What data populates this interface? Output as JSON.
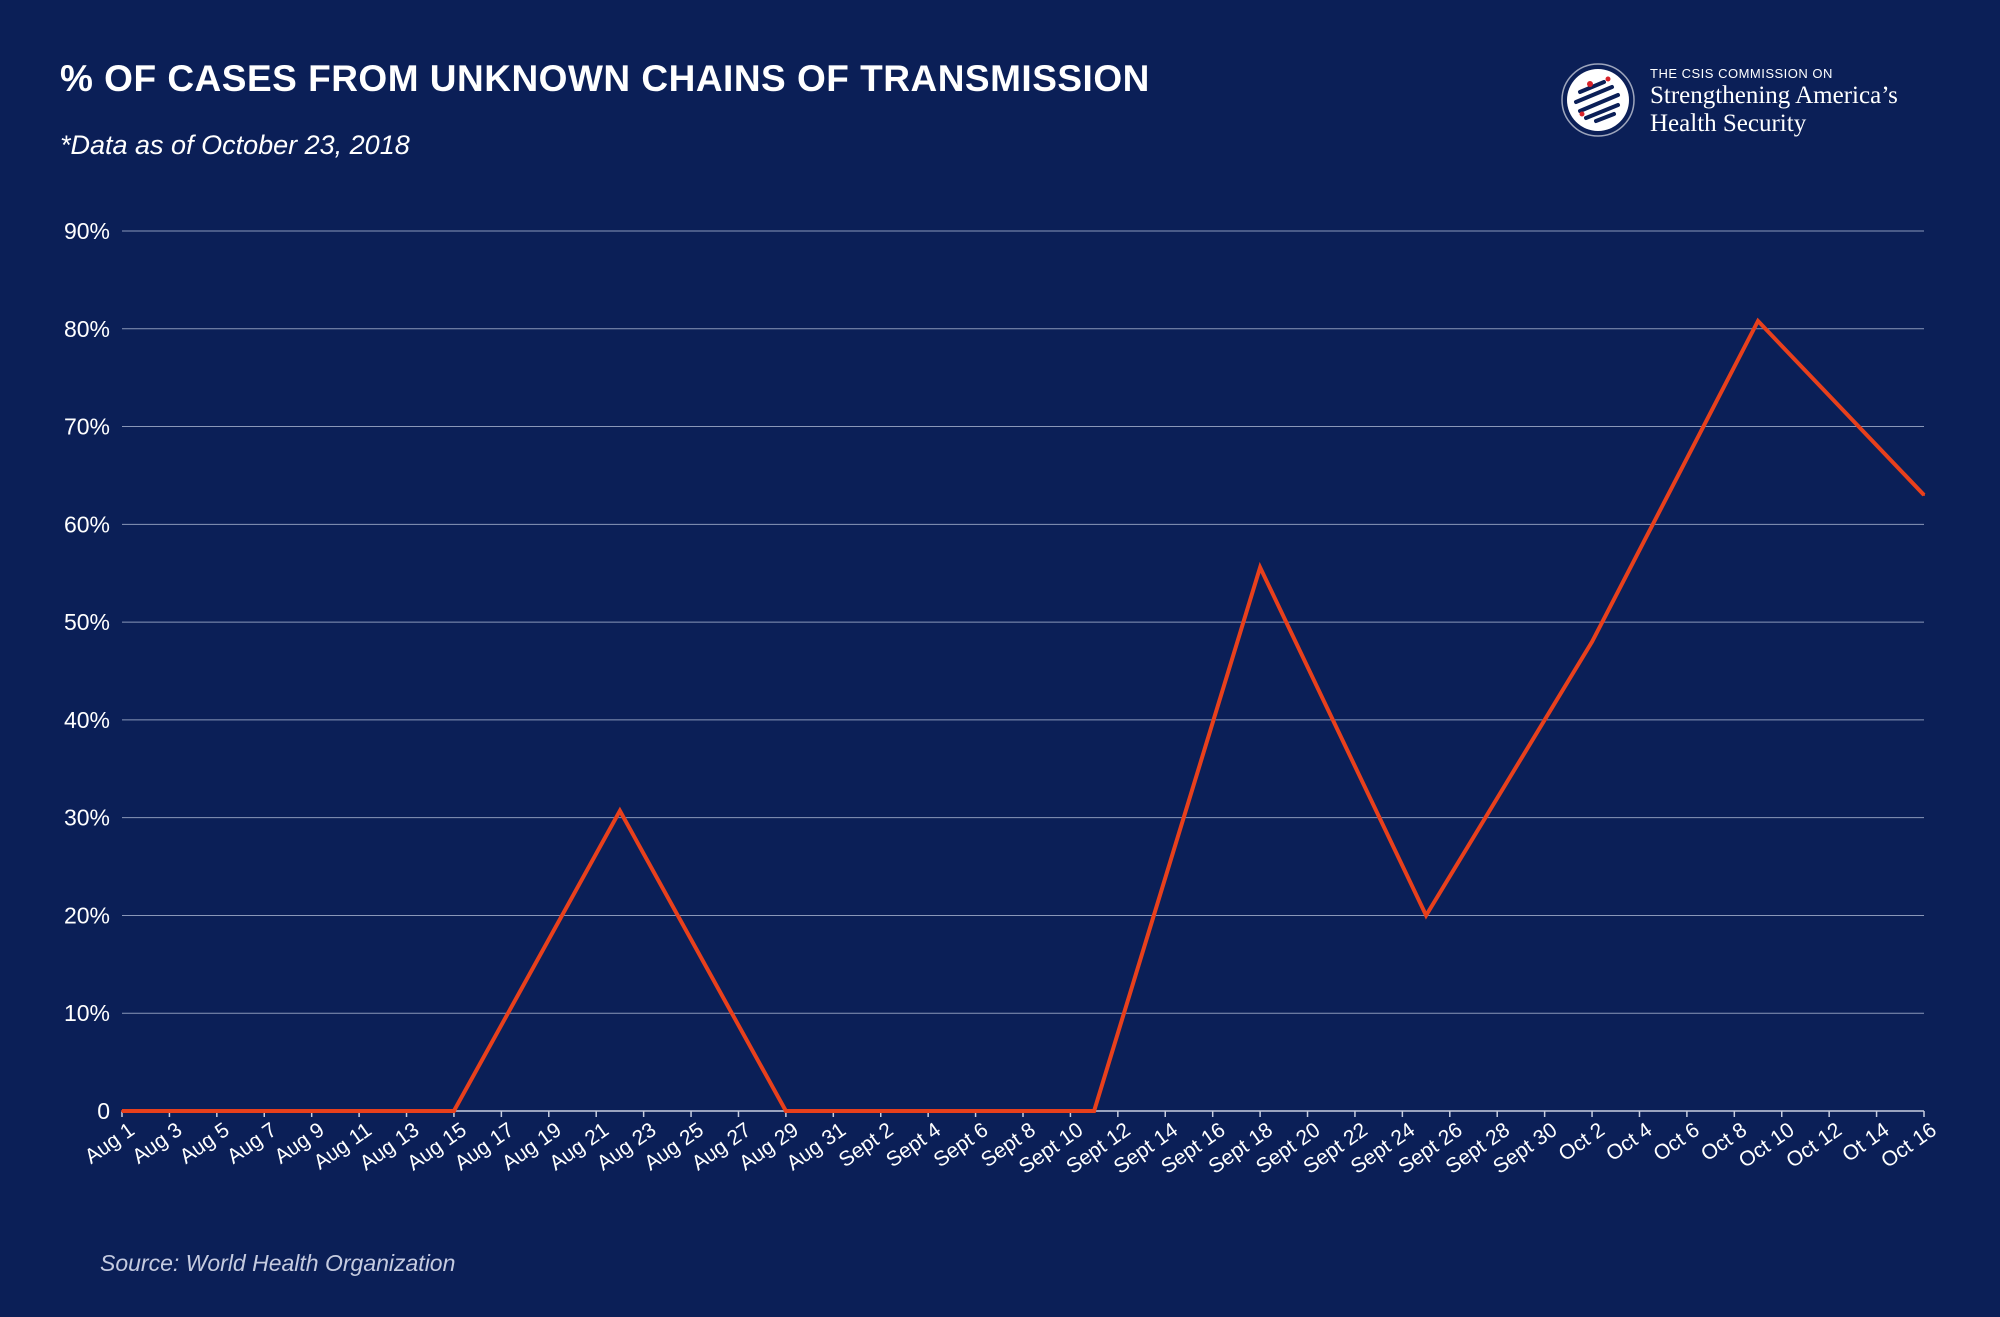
{
  "header": {
    "title": "% OF CASES FROM UNKNOWN CHAINS OF TRANSMISSION",
    "subtitle": "*Data as of October 23, 2018"
  },
  "logo": {
    "small": "THE CSIS COMMISSION ON",
    "line1": "Strengthening America’s",
    "line2": "Health Security"
  },
  "footer": {
    "source": "Source: World Health Organization"
  },
  "colors": {
    "background": "#0b1f57",
    "line": "#e8401c",
    "grid": "#8a97b8"
  },
  "chart_data": {
    "type": "line",
    "title": "% OF CASES FROM UNKNOWN CHAINS OF TRANSMISSION",
    "xlabel": "",
    "ylabel": "",
    "ylim": [
      0,
      90
    ],
    "y_ticks": [
      "0",
      "10%",
      "20%",
      "30%",
      "40%",
      "50%",
      "60%",
      "70%",
      "80%",
      "90%"
    ],
    "categories": [
      "Aug 1",
      "Aug 3",
      "Aug 5",
      "Aug 7",
      "Aug 9",
      "Aug 11",
      "Aug 13",
      "Aug 15",
      "Aug 17",
      "Aug 19",
      "Aug 21",
      "Aug 23",
      "Aug 25",
      "Aug 27",
      "Aug 29",
      "Aug 31",
      "Sept 2",
      "Sept 4",
      "Sept 6",
      "Sept 8",
      "Sept 10",
      "Sept 12",
      "Sept 14",
      "Sept 16",
      "Sept 18",
      "Sept 20",
      "Sept 22",
      "Sept 24",
      "Sept 26",
      "Sept 28",
      "Sept 30",
      "Oct 2",
      "Oct 4",
      "Oct 6",
      "Oct 8",
      "Oct 10",
      "Oct 12",
      "Ot 14",
      "Oct 16"
    ],
    "series": [
      {
        "points": [
          {
            "x": "Aug 1",
            "y": 0
          },
          {
            "x": "Aug 15",
            "y": 0
          },
          {
            "x": "Aug 22",
            "y": 30.7
          },
          {
            "x": "Aug 29",
            "y": 0
          },
          {
            "x": "Sept 11",
            "y": 0
          },
          {
            "x": "Sept 18",
            "y": 55.6
          },
          {
            "x": "Sept 25",
            "y": 20
          },
          {
            "x": "Oct 2",
            "y": 48
          },
          {
            "x": "Oct 9",
            "y": 80.8
          },
          {
            "x": "Oct 16",
            "y": 63
          }
        ]
      }
    ],
    "grid": true,
    "legend": "none"
  }
}
